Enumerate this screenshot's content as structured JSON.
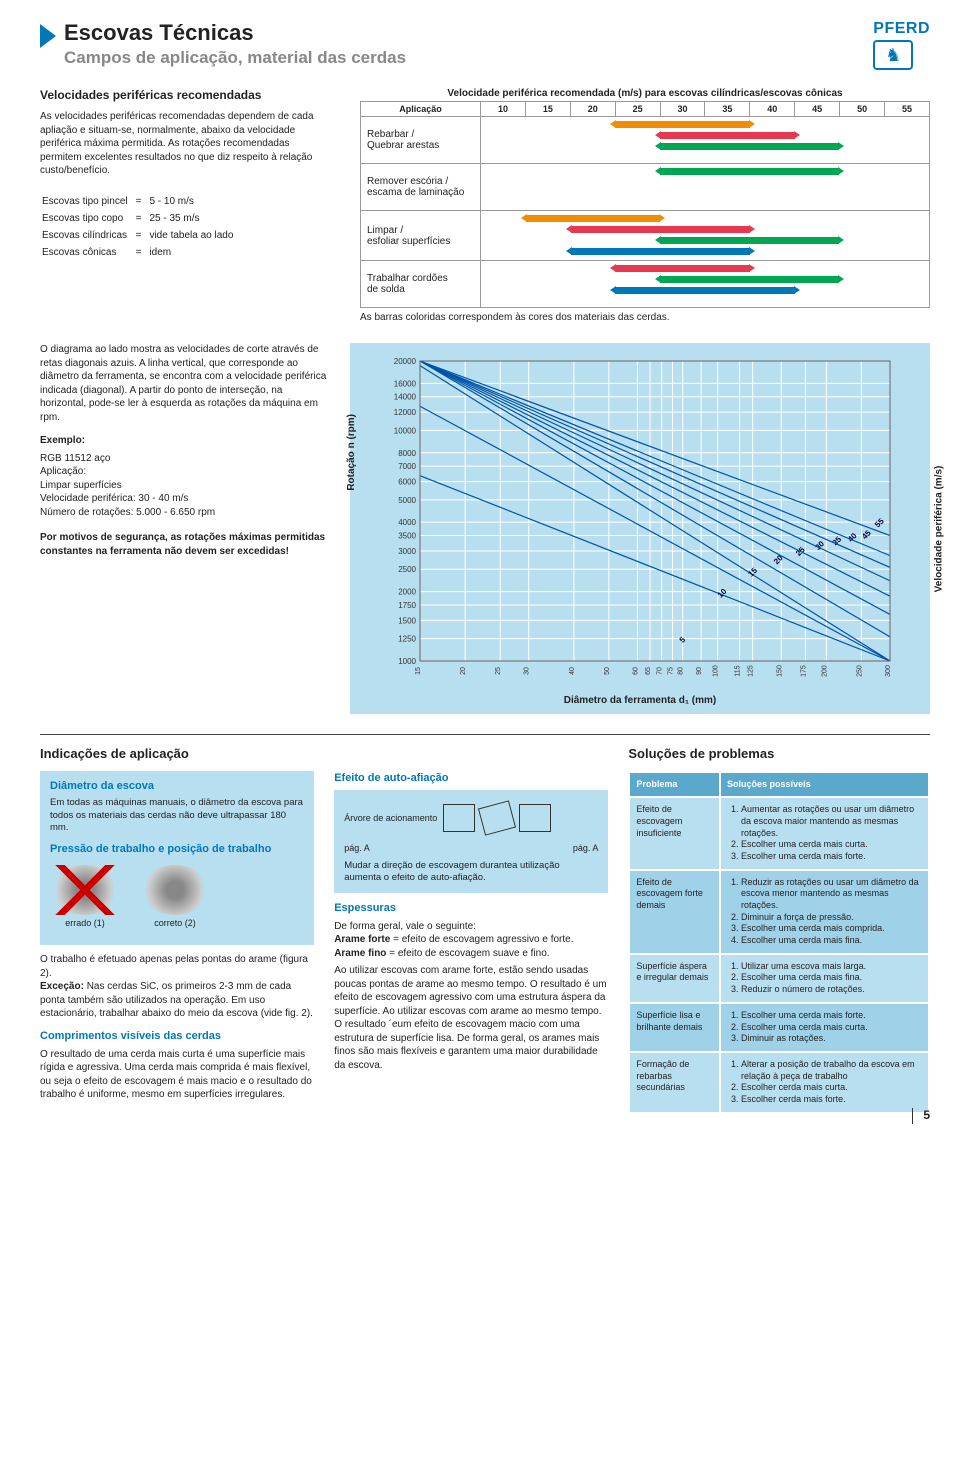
{
  "header": {
    "title": "Escovas Técnicas",
    "subtitle": "Campos de aplicação, material das cerdas",
    "logo_text": "PFERD"
  },
  "sec1": {
    "left": {
      "heading": "Velocidades periféricas recomendadas",
      "para": "As velocidades periféricas recomendadas dependem de cada apliação e situam-se, normalmente, abaixo da velocidade periférica máxima permitida. As rotações recomendadas permitem excelentes resultados no que diz respeito à relação custo/benefício.",
      "brush_rows": [
        [
          "Escovas tipo pincel",
          "=",
          "5 - 10 m/s"
        ],
        [
          "Escovas tipo copo",
          "=",
          "25 - 35 m/s"
        ],
        [
          "Escovas cilíndricas",
          "=",
          "vide tabela ao lado"
        ],
        [
          "Escovas cônicas",
          "=",
          "idem"
        ]
      ]
    },
    "right": {
      "table_title": "Velocidade periférica recomendada (m/s) para escovas cilíndricas/escovas cônicas",
      "aplicacao": "Aplicação",
      "ticks": [
        10,
        15,
        20,
        25,
        30,
        35,
        40,
        45,
        50,
        55
      ],
      "rows": [
        {
          "label": "Rebarbar /\nQuebrar arestas",
          "bars": [
            {
              "from_idx": 3,
              "to_idx": 6,
              "color": "#f28c00"
            },
            {
              "from_idx": 4,
              "to_idx": 7,
              "color": "#e63950"
            },
            {
              "from_idx": 4,
              "to_idx": 8,
              "color": "#00a651"
            }
          ]
        },
        {
          "label": "Remover escória /\nescama de laminação",
          "bars": [
            {
              "from_idx": 4,
              "to_idx": 8,
              "color": "#00a651"
            }
          ]
        },
        {
          "label": "Limpar /\nesfoliar superfícies",
          "bars": [
            {
              "from_idx": 1,
              "to_idx": 4,
              "color": "#f28c00"
            },
            {
              "from_idx": 2,
              "to_idx": 6,
              "color": "#e63950"
            },
            {
              "from_idx": 4,
              "to_idx": 8,
              "color": "#00a651"
            },
            {
              "from_idx": 2,
              "to_idx": 6,
              "color": "#0078b8"
            }
          ]
        },
        {
          "label": "Trabalhar cordões\nde solda",
          "bars": [
            {
              "from_idx": 3,
              "to_idx": 6,
              "color": "#e63950"
            },
            {
              "from_idx": 4,
              "to_idx": 8,
              "color": "#00a651"
            },
            {
              "from_idx": 3,
              "to_idx": 7,
              "color": "#0078b8"
            }
          ]
        }
      ],
      "caption": "As barras coloridas correspondem às cores dos materiais das cerdas."
    }
  },
  "sec2": {
    "left": {
      "para1": "O diagrama ao lado mostra as velocidades de corte através de retas diagonais azuis. A linha vertical, que corresponde ao diâmetro da ferramenta, se encontra com a velocidade periférica indicada (diagonal). A partir do ponto de interseção, na horizontal, pode-se ler à esquerda as rotações da máquina em rpm.",
      "ex_head": "Exemplo:",
      "ex_body": [
        "RGB 11512 aço",
        "Aplicação:",
        "Limpar superfícies",
        "Velocidade periférica: 30 - 40 m/s",
        "Número de rotações: 5.000 - 6.650 rpm"
      ],
      "note": "Por motivos de segurança, as rotações máximas permitidas constantes na ferramenta não devem ser excedidas!"
    },
    "chart": {
      "bg": "#b8dff0",
      "grid_color": "#ffffff",
      "line_color": "#0054a6",
      "y_ticks": [
        20000,
        16000,
        14000,
        12000,
        10000,
        8000,
        7000,
        6000,
        5000,
        4000,
        3500,
        3000,
        2500,
        2000,
        1750,
        1500,
        1250,
        1000
      ],
      "x_ticks": [
        15,
        20,
        25,
        30,
        40,
        50,
        60,
        65,
        70,
        75,
        80,
        90,
        100,
        115,
        125,
        150,
        175,
        200,
        250,
        300
      ],
      "diag_labels": [
        "5",
        "10",
        "15",
        "20",
        "25",
        "30",
        "35",
        "40",
        "45",
        "55"
      ],
      "y_label": "Rotação n (rpm)",
      "y_label_right": "Velocidade periférica (m/s)",
      "x_label": "Diâmetro da ferramenta d₁ (mm)"
    }
  },
  "sec3": {
    "h_left": "Indicações de aplicação",
    "h_right": "Soluções de problemas",
    "col1": {
      "bluebox_title": "Diâmetro da escova",
      "bluebox_text": "Em todas as máquinas manuais, o diâmetro da escova para todos os materiais das cerdas não deve ultrapassar 180 mm.",
      "sub1": "Pressão de trabalho e posição de trabalho",
      "wrong": "errado (1)",
      "correct": "correto (2)",
      "para2": "O trabalho é efetuado apenas pelas pontas do arame (figura 2).",
      "para2b": "Exceção: Nas cerdas SiC, os primeiros 2-3 mm de cada ponta também são utilizados na operação. Em uso estacionário, trabalhar abaixo do meio da escova (vide fig. 2).",
      "sub2": "Comprimentos visíveis das cerdas",
      "para3": "O resultado de uma cerda mais curta é uma superfície mais rígida e agressiva. Uma cerda mais comprida é mais flexível, ou seja o efeito de escovagem é mais macio e o resultado do trabalho é uniforme, mesmo em superfícies irregulares."
    },
    "col2": {
      "sub1": "Efeito de auto-afiação",
      "arvore": "Árvore de acionamento",
      "pagA": "pág. A",
      "para1": "Mudar a direção de escovagem durantea utilização aumenta o efeito de auto-afiação.",
      "sub2": "Espessuras",
      "para2a": "De forma geral, vale o seguinte:",
      "para2b": "Arame forte = efeito de escovagem agressivo e forte.",
      "para2c": "Arame fino  = efeito de escovagem suave e fino.",
      "para3": "Ao utilizar escovas com arame forte, estão sendo usadas poucas pontas de arame ao mesmo tempo. O resultado é um efeito de escovagem agressivo com uma estrutura áspera da superfície. Ao utilizar escovas com arame ao mesmo tempo. O resultado ´eum efeito de escovagem macio com uma estrutura de superfície lisa. De forma geral, os arames mais finos são mais flexíveis e garantem uma maior durabilidade da escova."
    },
    "col3": {
      "hdr1": "Problema",
      "hdr2": "Soluções possíveis",
      "rows": [
        {
          "p": "Efeito de escovagem insuficiente",
          "s": [
            "Aumentar as rotações ou usar um diâmetro da escova maior mantendo as mesmas rotações.",
            "Escolher uma cerda mais curta.",
            "Escolher uma cerda mais forte."
          ]
        },
        {
          "p": "Efeito de escovagem forte demais",
          "s": [
            "Reduzir as rotações ou usar um diâmetro da escova menor mantendo as mesmas rotações.",
            "Diminuir a força de pressão.",
            "Escolher uma cerda mais comprida.",
            "Escolher uma cerda mais fina."
          ]
        },
        {
          "p": "Superfície áspera e irregular demais",
          "s": [
            "Utilizar uma escova mais larga.",
            "Escolher uma cerda mais fina.",
            "Reduzir o número de rotações."
          ]
        },
        {
          "p": "Superfície lisa e brilhante demais",
          "s": [
            "Escolher uma cerda mais forte.",
            "Escolher uma cerda mais curta.",
            "Diminuir as rotações."
          ]
        },
        {
          "p": "Formação de rebarbas secundárias",
          "s": [
            "Alterar a posição de trabalho da escova em relação à peça de trabalho",
            "Escolher cerda mais curta.",
            "Escolher cerda mais forte."
          ]
        }
      ]
    }
  },
  "pagenum": "5"
}
